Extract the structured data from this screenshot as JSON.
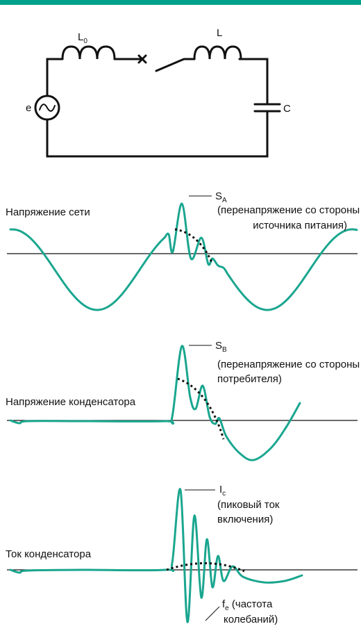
{
  "circuit": {
    "inductor0": {
      "label": "L",
      "sub": "0"
    },
    "inductor": "L",
    "source": "e",
    "capacitor": "C"
  },
  "graphs": [
    {
      "label": "Напряжение сети",
      "peak": {
        "label": "S",
        "sub": "A"
      },
      "note": [
        "(перенапряжение со стороны",
        "источника питания)"
      ]
    },
    {
      "label": "Напряжение конденсатора",
      "peak": {
        "label": "S",
        "sub": "B"
      },
      "note": [
        "(перенапряжение со стороны",
        "потребителя)"
      ]
    },
    {
      "label": "Ток конденсатора",
      "peak": {
        "label": "I",
        "sub": "c"
      },
      "note": [
        "(пиковый ток",
        "включения)"
      ],
      "frequency": {
        "label": "f",
        "sub": "e",
        "text": " (частота",
        "line2": "колебаний)"
      }
    }
  ]
}
